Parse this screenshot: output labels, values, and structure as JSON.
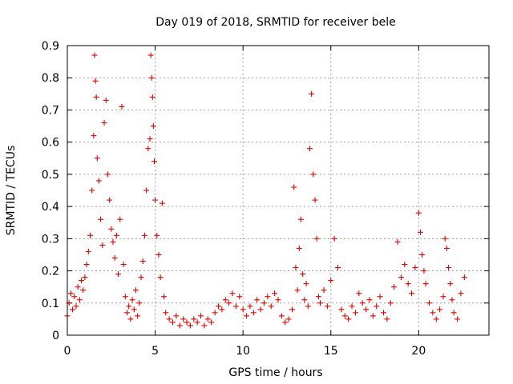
{
  "chart_data": {
    "type": "scatter",
    "title": "Day 019 of 2018, SRMTID for receiver bele",
    "xlabel": "GPS time / hours",
    "ylabel": "SRMTID / TECUs",
    "xlim": [
      0,
      24
    ],
    "ylim": [
      0,
      0.9
    ],
    "x_ticks": [
      0,
      5,
      10,
      15,
      20
    ],
    "x_tick_labels": [
      "0",
      "5",
      "10",
      "15",
      "20"
    ],
    "y_ticks": [
      0,
      0.1,
      0.2,
      0.3,
      0.4,
      0.5,
      0.6,
      0.7,
      0.8,
      0.9
    ],
    "y_tick_labels": [
      "0",
      "0.1",
      "0.2",
      "0.3",
      "0.4",
      "0.5",
      "0.6",
      "0.7",
      "0.8",
      "0.9"
    ],
    "grid": true,
    "marker": "plus",
    "color": "#e00000",
    "series": [
      {
        "name": "SRMTID",
        "points": [
          [
            0.0,
            0.06
          ],
          [
            0.1,
            0.1
          ],
          [
            0.2,
            0.13
          ],
          [
            0.3,
            0.08
          ],
          [
            0.4,
            0.12
          ],
          [
            0.5,
            0.09
          ],
          [
            0.6,
            0.15
          ],
          [
            0.7,
            0.11
          ],
          [
            0.8,
            0.17
          ],
          [
            0.9,
            0.14
          ],
          [
            1.0,
            0.18
          ],
          [
            1.1,
            0.22
          ],
          [
            1.2,
            0.26
          ],
          [
            1.3,
            0.31
          ],
          [
            1.4,
            0.45
          ],
          [
            1.5,
            0.62
          ],
          [
            1.55,
            0.87
          ],
          [
            1.6,
            0.79
          ],
          [
            1.65,
            0.74
          ],
          [
            1.7,
            0.55
          ],
          [
            1.8,
            0.48
          ],
          [
            1.9,
            0.36
          ],
          [
            2.0,
            0.28
          ],
          [
            2.1,
            0.66
          ],
          [
            2.2,
            0.73
          ],
          [
            2.3,
            0.5
          ],
          [
            2.4,
            0.42
          ],
          [
            2.5,
            0.33
          ],
          [
            2.6,
            0.29
          ],
          [
            2.7,
            0.24
          ],
          [
            2.8,
            0.31
          ],
          [
            2.9,
            0.19
          ],
          [
            3.0,
            0.36
          ],
          [
            3.1,
            0.71
          ],
          [
            3.2,
            0.22
          ],
          [
            3.3,
            0.12
          ],
          [
            3.4,
            0.07
          ],
          [
            3.5,
            0.09
          ],
          [
            3.6,
            0.05
          ],
          [
            3.7,
            0.11
          ],
          [
            3.8,
            0.08
          ],
          [
            3.9,
            0.14
          ],
          [
            4.0,
            0.06
          ],
          [
            4.1,
            0.1
          ],
          [
            4.2,
            0.18
          ],
          [
            4.3,
            0.23
          ],
          [
            4.4,
            0.31
          ],
          [
            4.5,
            0.45
          ],
          [
            4.6,
            0.58
          ],
          [
            4.7,
            0.61
          ],
          [
            4.75,
            0.87
          ],
          [
            4.8,
            0.8
          ],
          [
            4.85,
            0.74
          ],
          [
            4.9,
            0.65
          ],
          [
            4.95,
            0.54
          ],
          [
            5.0,
            0.42
          ],
          [
            5.1,
            0.31
          ],
          [
            5.2,
            0.25
          ],
          [
            5.3,
            0.18
          ],
          [
            5.4,
            0.41
          ],
          [
            5.5,
            0.12
          ],
          [
            5.6,
            0.07
          ],
          [
            5.8,
            0.05
          ],
          [
            6.0,
            0.04
          ],
          [
            6.2,
            0.06
          ],
          [
            6.4,
            0.03
          ],
          [
            6.6,
            0.05
          ],
          [
            6.8,
            0.04
          ],
          [
            7.0,
            0.03
          ],
          [
            7.2,
            0.05
          ],
          [
            7.4,
            0.04
          ],
          [
            7.6,
            0.06
          ],
          [
            7.8,
            0.03
          ],
          [
            8.0,
            0.05
          ],
          [
            8.2,
            0.04
          ],
          [
            8.4,
            0.07
          ],
          [
            8.6,
            0.09
          ],
          [
            8.8,
            0.08
          ],
          [
            9.0,
            0.11
          ],
          [
            9.2,
            0.1
          ],
          [
            9.4,
            0.13
          ],
          [
            9.6,
            0.09
          ],
          [
            9.8,
            0.12
          ],
          [
            10.0,
            0.08
          ],
          [
            10.2,
            0.06
          ],
          [
            10.4,
            0.09
          ],
          [
            10.6,
            0.07
          ],
          [
            10.8,
            0.11
          ],
          [
            11.0,
            0.08
          ],
          [
            11.2,
            0.1
          ],
          [
            11.4,
            0.12
          ],
          [
            11.6,
            0.09
          ],
          [
            11.8,
            0.13
          ],
          [
            12.0,
            0.11
          ],
          [
            12.2,
            0.06
          ],
          [
            12.4,
            0.04
          ],
          [
            12.6,
            0.05
          ],
          [
            12.8,
            0.08
          ],
          [
            12.9,
            0.46
          ],
          [
            13.0,
            0.21
          ],
          [
            13.1,
            0.14
          ],
          [
            13.2,
            0.27
          ],
          [
            13.3,
            0.36
          ],
          [
            13.4,
            0.19
          ],
          [
            13.5,
            0.11
          ],
          [
            13.6,
            0.16
          ],
          [
            13.7,
            0.09
          ],
          [
            13.8,
            0.58
          ],
          [
            13.9,
            0.75
          ],
          [
            14.0,
            0.5
          ],
          [
            14.1,
            0.42
          ],
          [
            14.2,
            0.3
          ],
          [
            14.3,
            0.12
          ],
          [
            14.4,
            0.1
          ],
          [
            14.6,
            0.14
          ],
          [
            14.8,
            0.09
          ],
          [
            15.0,
            0.17
          ],
          [
            15.2,
            0.3
          ],
          [
            15.4,
            0.21
          ],
          [
            15.6,
            0.08
          ],
          [
            15.8,
            0.06
          ],
          [
            16.0,
            0.05
          ],
          [
            16.2,
            0.09
          ],
          [
            16.4,
            0.07
          ],
          [
            16.6,
            0.13
          ],
          [
            16.8,
            0.1
          ],
          [
            17.0,
            0.08
          ],
          [
            17.2,
            0.11
          ],
          [
            17.4,
            0.06
          ],
          [
            17.6,
            0.09
          ],
          [
            17.8,
            0.12
          ],
          [
            18.0,
            0.07
          ],
          [
            18.2,
            0.05
          ],
          [
            18.4,
            0.1
          ],
          [
            18.6,
            0.15
          ],
          [
            18.8,
            0.29
          ],
          [
            19.0,
            0.18
          ],
          [
            19.2,
            0.22
          ],
          [
            19.4,
            0.16
          ],
          [
            19.6,
            0.13
          ],
          [
            19.8,
            0.21
          ],
          [
            20.0,
            0.38
          ],
          [
            20.1,
            0.32
          ],
          [
            20.2,
            0.25
          ],
          [
            20.3,
            0.2
          ],
          [
            20.4,
            0.16
          ],
          [
            20.6,
            0.1
          ],
          [
            20.8,
            0.07
          ],
          [
            21.0,
            0.05
          ],
          [
            21.2,
            0.08
          ],
          [
            21.4,
            0.12
          ],
          [
            21.5,
            0.3
          ],
          [
            21.6,
            0.27
          ],
          [
            21.7,
            0.21
          ],
          [
            21.8,
            0.16
          ],
          [
            21.9,
            0.11
          ],
          [
            22.0,
            0.07
          ],
          [
            22.2,
            0.05
          ],
          [
            22.4,
            0.13
          ],
          [
            22.6,
            0.18
          ]
        ]
      }
    ]
  }
}
